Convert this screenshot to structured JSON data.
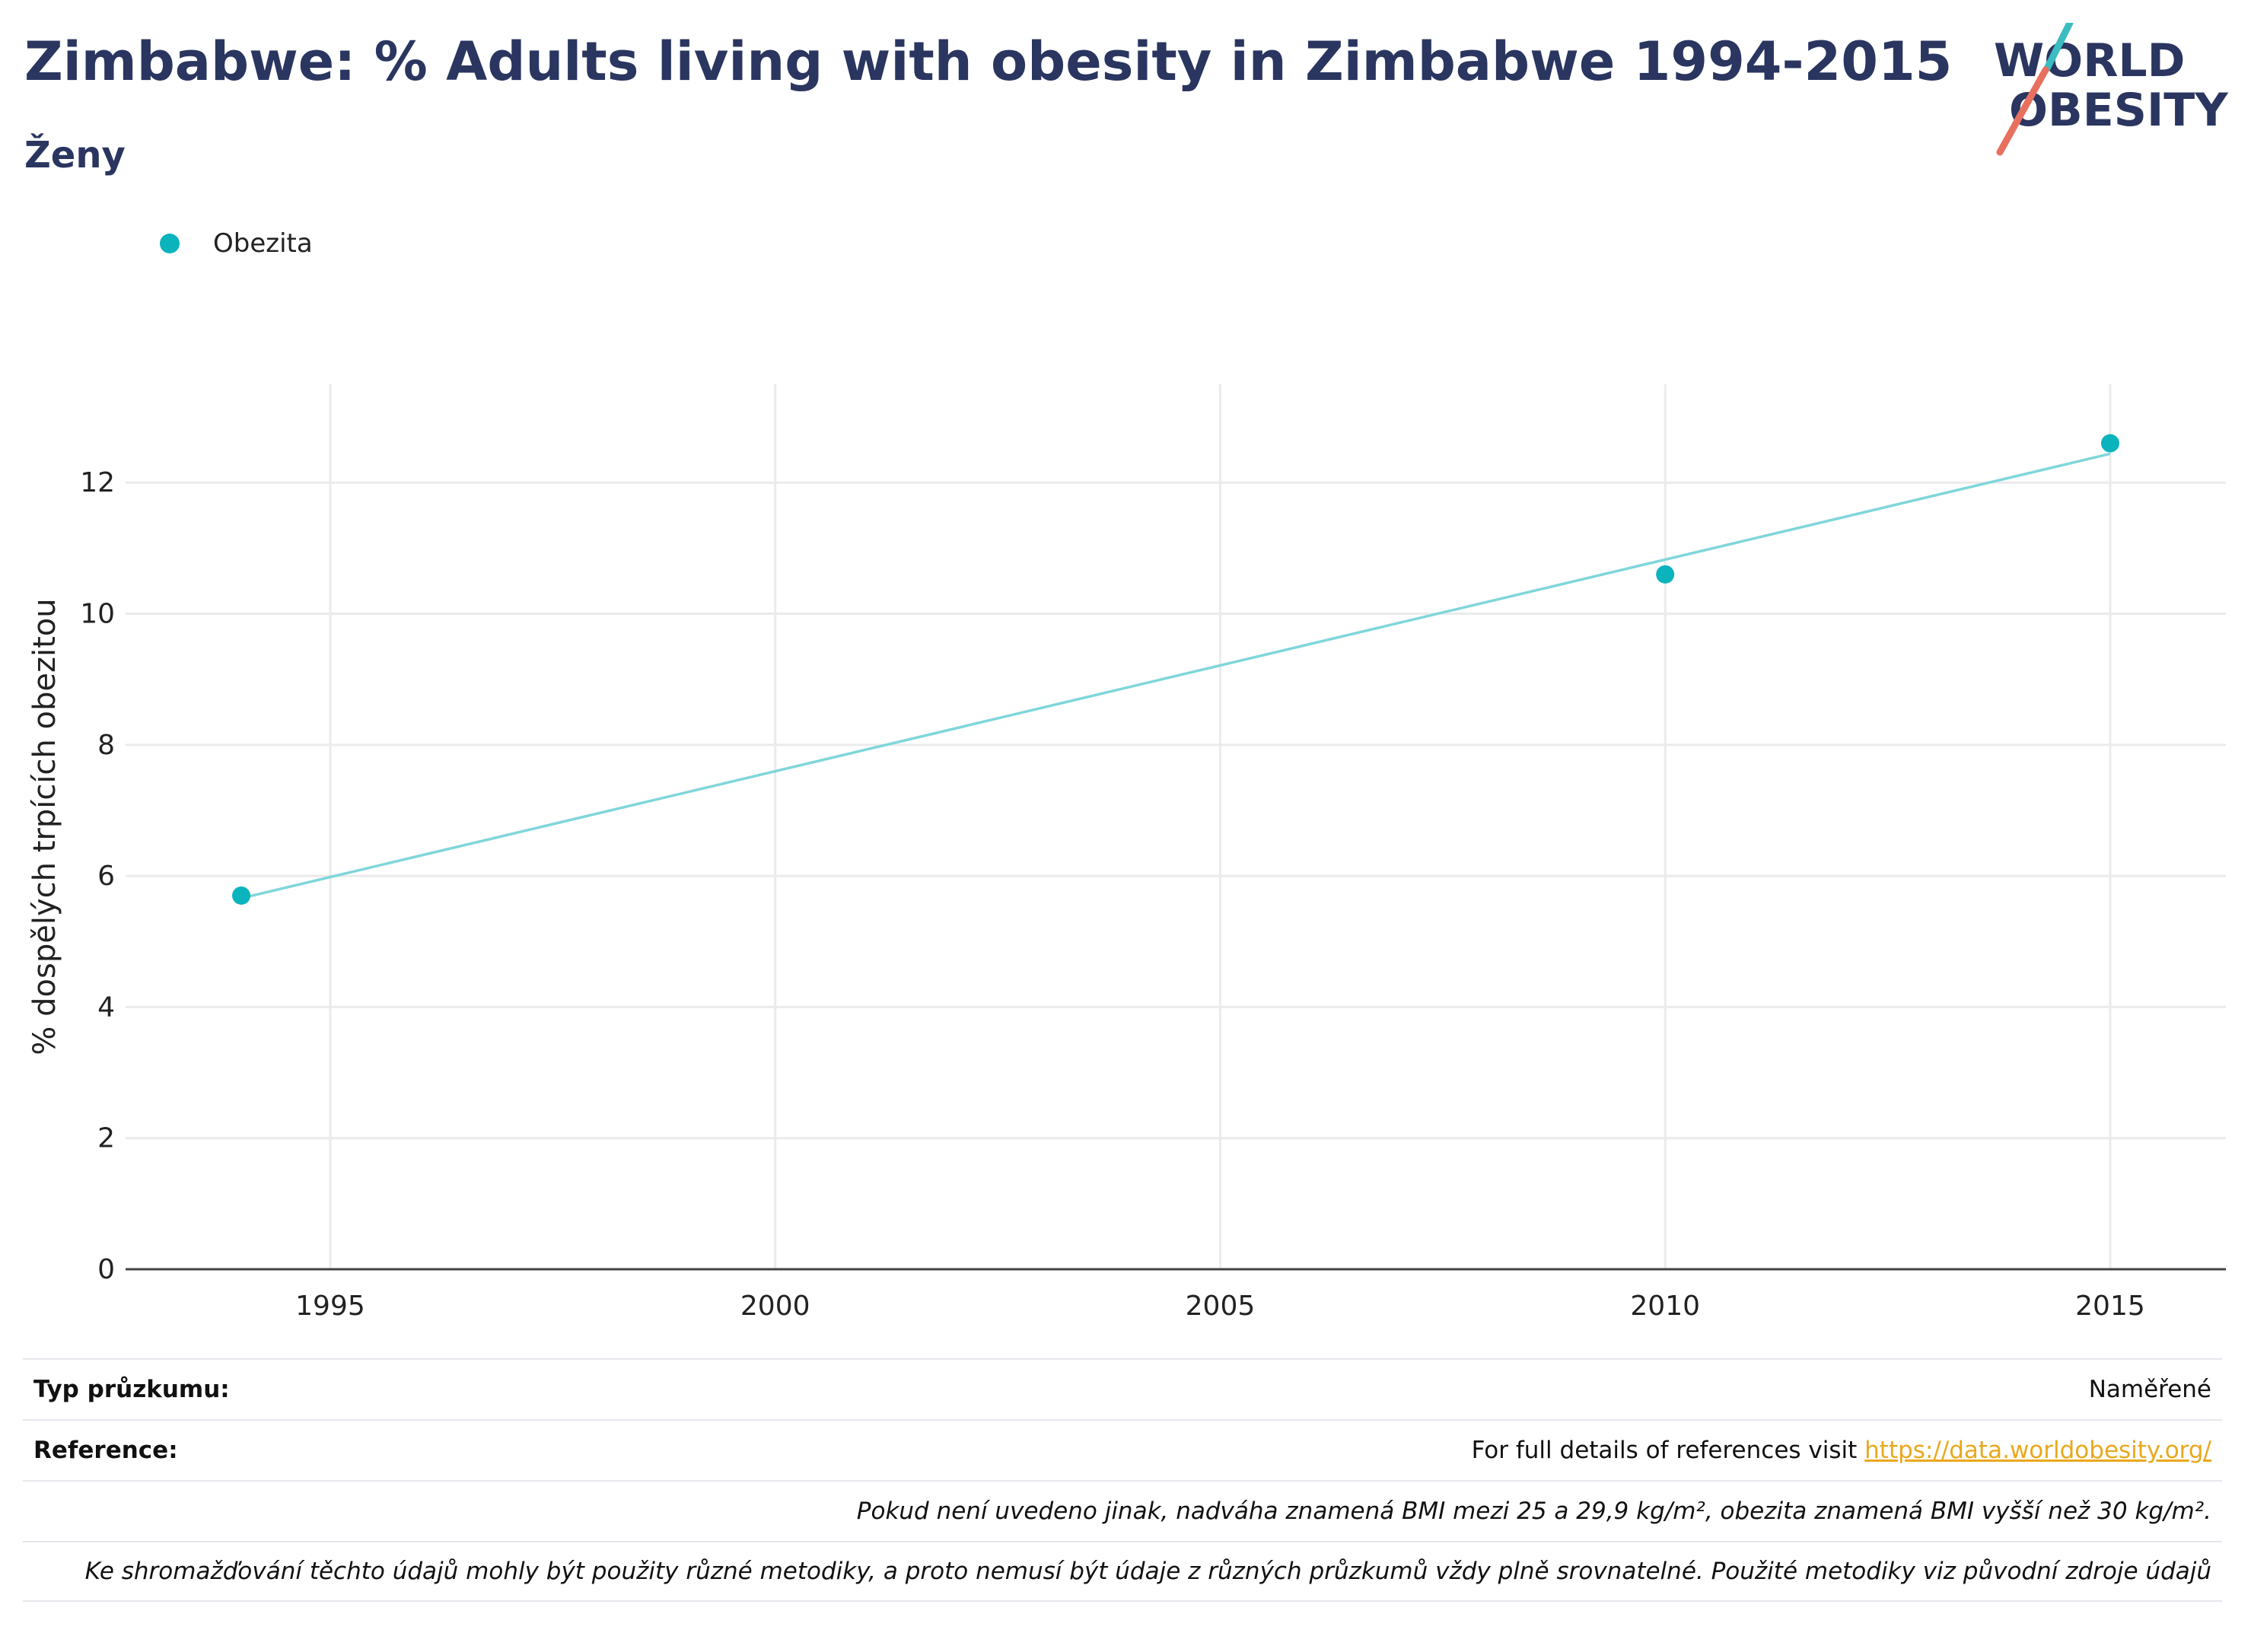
{
  "header": {
    "title": "Zimbabwe: % Adults living with obesity in Zimbabwe 1994-2015",
    "subtitle": "Ženy"
  },
  "logo": {
    "line1": "WORLD",
    "line2": "OBESITY",
    "teal": "#3bbcc0",
    "coral": "#e8705f",
    "navy": "#2a3560"
  },
  "legend": {
    "label": "Obezita",
    "color": "#0bb3bd"
  },
  "chart_data": {
    "type": "scatter",
    "ylabel": "% dospělých trpících obezitou",
    "xlabel": "",
    "xlim": [
      1992.7,
      2016.3
    ],
    "ylim": [
      0,
      13.5
    ],
    "xticks": [
      1995,
      2000,
      2005,
      2010,
      2015
    ],
    "yticks": [
      0,
      2,
      4,
      6,
      8,
      10,
      12
    ],
    "grid": true,
    "series": [
      {
        "name": "Obezita",
        "color": "#0bb3bd",
        "x": [
          1994,
          2010,
          2015
        ],
        "y": [
          5.7,
          10.6,
          12.6
        ]
      }
    ],
    "trendline": {
      "color": "#7fd6da",
      "x": [
        1994,
        2015
      ],
      "y": [
        5.66,
        12.44
      ]
    }
  },
  "footer": {
    "survey_label": "Typ průzkumu:",
    "survey_value": "Naměřené",
    "reference_label": "Reference:",
    "reference_text": "For full details of references visit ",
    "reference_link": "https://data.worldobesity.org/",
    "note1": "Pokud není uvedeno jinak, nadváha znamená BMI mezi 25 a 29,9 kg/m², obezita znamená BMI vyšší než 30 kg/m².",
    "note2": "Ke shromažďování těchto údajů mohly být použity různé metodiky, a proto nemusí být údaje z různých průzkumů vždy plně srovnatelné. Použité metodiky viz původní zdroje údajů"
  }
}
